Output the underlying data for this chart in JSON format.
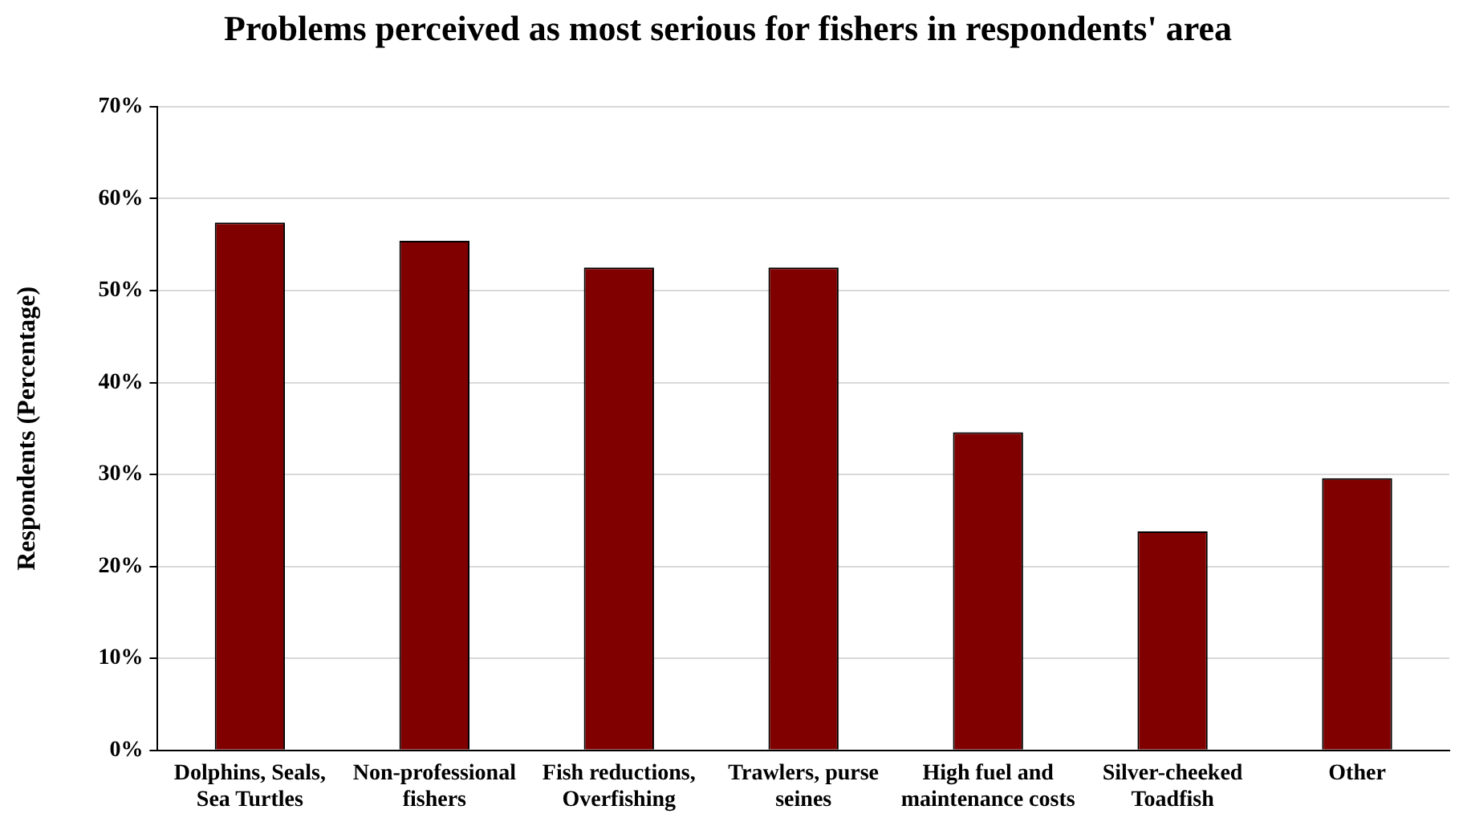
{
  "chart_data": {
    "type": "bar",
    "title": "Problems perceived as most serious for fishers in respondents' area",
    "ylabel": "Respondents (Percentage)",
    "categories": [
      "Dolphins, Seals, Sea Turtles",
      "Non-professional fishers",
      "Fish reductions, Overfishing",
      "Trawlers, purse seines",
      "High fuel and maintenance costs",
      "Silver-cheeked Toadfish",
      "Other"
    ],
    "values": [
      57.4,
      55.4,
      52.5,
      52.5,
      34.6,
      23.8,
      29.6
    ],
    "color": "#800000",
    "ylim": [
      0,
      70
    ],
    "yticks": [
      {
        "value": 0,
        "label": "0%"
      },
      {
        "value": 10,
        "label": "10%"
      },
      {
        "value": 20,
        "label": "20%"
      },
      {
        "value": 30,
        "label": "30%"
      },
      {
        "value": 40,
        "label": "40%"
      },
      {
        "value": 50,
        "label": "50%"
      },
      {
        "value": 60,
        "label": "60%"
      },
      {
        "value": 70,
        "label": "70%"
      }
    ],
    "grid": "y",
    "legend": false
  }
}
